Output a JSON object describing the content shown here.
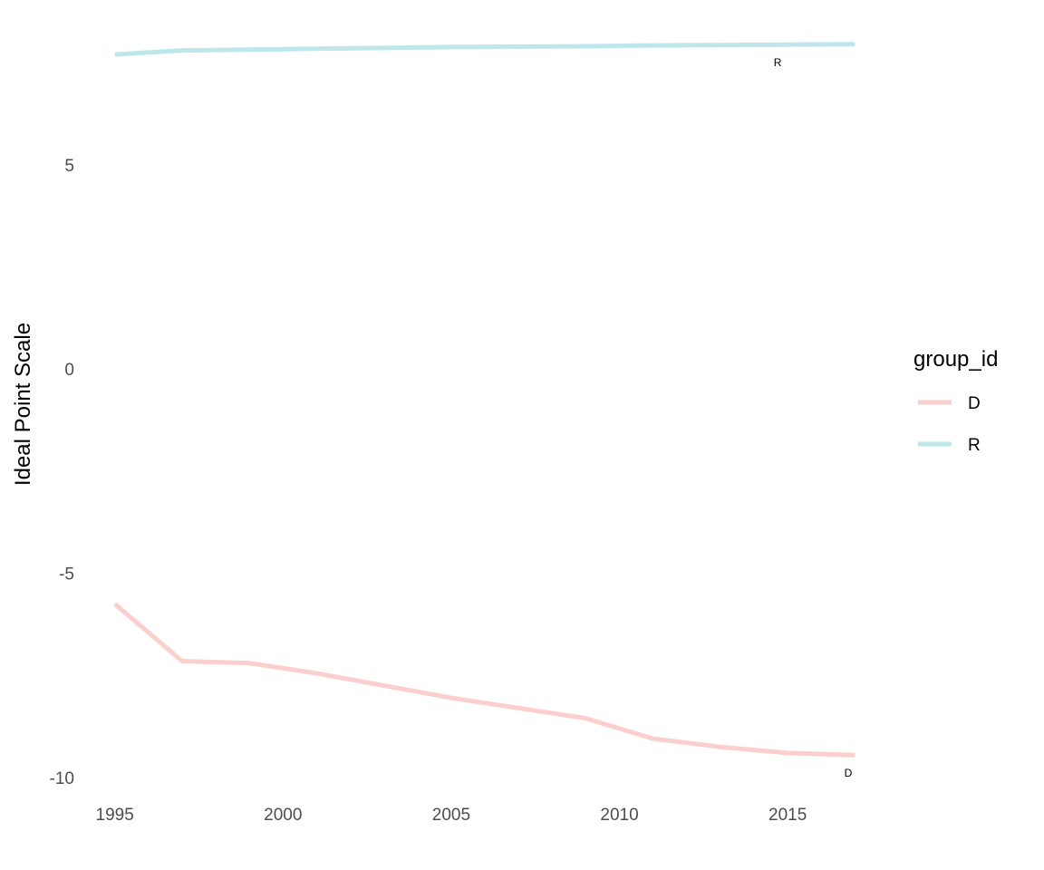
{
  "chart_data": {
    "type": "line",
    "title": "",
    "xlabel": "",
    "ylabel": "Ideal Point Scale",
    "xlim": [
      1994.2,
      2017.5
    ],
    "ylim": [
      -10.4,
      8.5
    ],
    "x_ticks": [
      1995,
      2000,
      2005,
      2010,
      2015
    ],
    "y_ticks": [
      5,
      0,
      -5,
      -10
    ],
    "grid": false,
    "legend": {
      "title": "group_id",
      "position": "right",
      "entries": [
        "D",
        "R"
      ]
    },
    "series": [
      {
        "name": "D",
        "color": "#fbcfcd",
        "end_label": "D",
        "x": [
          1995,
          1997,
          1999,
          2001,
          2003,
          2005,
          2007,
          2009,
          2011,
          2013,
          2015,
          2017
        ],
        "values": [
          -5.75,
          -7.15,
          -7.2,
          -7.45,
          -7.75,
          -8.05,
          -8.3,
          -8.55,
          -9.05,
          -9.25,
          -9.4,
          -9.45
        ]
      },
      {
        "name": "R",
        "color": "#bde7eb",
        "end_label": "R",
        "x": [
          1995,
          1997,
          1999,
          2001,
          2003,
          2005,
          2007,
          2009,
          2011,
          2013,
          2015,
          2017
        ],
        "values": [
          7.7,
          7.8,
          7.82,
          7.84,
          7.86,
          7.88,
          7.89,
          7.9,
          7.92,
          7.93,
          7.94,
          7.95
        ]
      }
    ]
  }
}
